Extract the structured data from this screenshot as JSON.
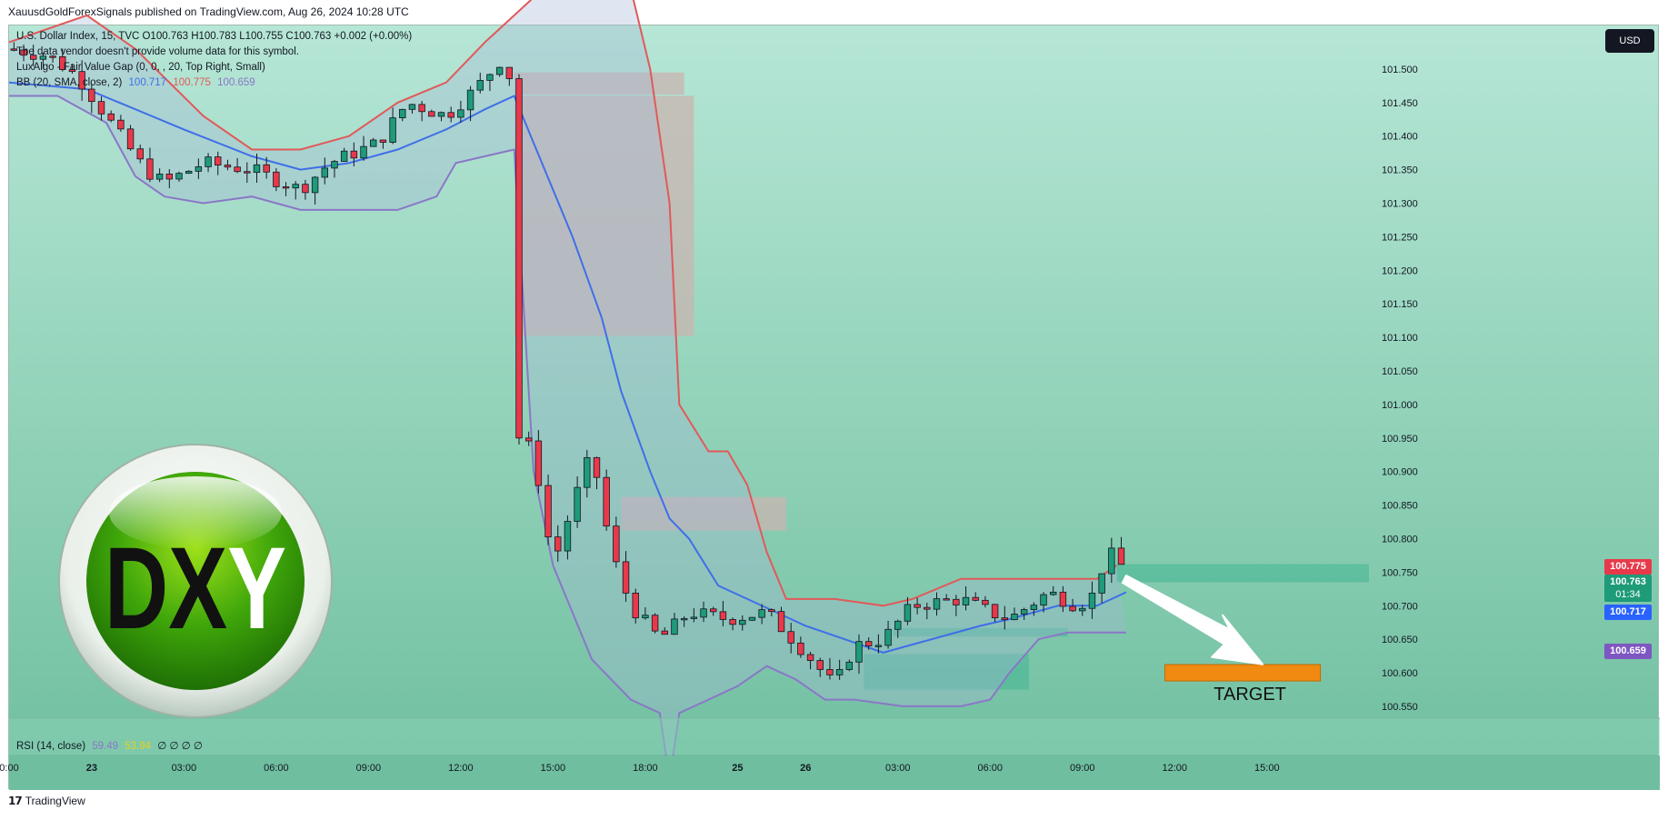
{
  "header": {
    "text": "XauusdGoldForexSignals published on TradingView.com, Aug 26, 2024 10:28 UTC"
  },
  "legend": {
    "symbol_line": "U.S. Dollar Index, 15, TVC  O100.763  H100.783  L100.755  C100.763  +0.002 (+0.00%)",
    "vol_line": "The data vendor doesn't provide volume data for this symbol.",
    "fvg_line": "LuxAlgo - Fair Value Gap (0, 0, , 20, Top Right, Small)",
    "bb_name": "BB (20, SMA, close, 2)",
    "bb_basis": "100.717",
    "bb_upper": "100.775",
    "bb_lower": "100.659"
  },
  "currency_button": "USD",
  "price_tags": {
    "upper": "100.775",
    "close": "100.763",
    "countdown": "01:34",
    "basis": "100.717",
    "lower": "100.659"
  },
  "rsi": {
    "label": "RSI (14, close)",
    "v1": "59.49",
    "v2": "53.94",
    "rest": "∅ ∅ ∅ ∅"
  },
  "logo": {
    "text": "DXY"
  },
  "annotation": {
    "target_label": "TARGET"
  },
  "footer": {
    "brand": "TradingView",
    "logo_icon": "tradingview-logo-icon"
  },
  "colors": {
    "bb_upper": "#e05a5a",
    "bb_basis": "#3f6fe8",
    "bb_lower": "#8a77c7",
    "bull": "#1e9b78",
    "bear": "#e8394a",
    "target": "#f08a10",
    "fvg_bear": "#c9b4b0",
    "fvg_bull": "#4cb896"
  },
  "chart_data": {
    "type": "candlestick",
    "symbol": "U.S. Dollar Index, 15, TVC",
    "y_axis": {
      "range": [
        100.535,
        101.565
      ],
      "ticks": [
        "101.500",
        "101.450",
        "101.400",
        "101.350",
        "101.300",
        "101.250",
        "101.200",
        "101.150",
        "101.100",
        "101.050",
        "101.000",
        "100.950",
        "100.900",
        "100.850",
        "100.800",
        "100.750",
        "100.700",
        "100.650",
        "100.600",
        "100.550"
      ]
    },
    "x_axis": {
      "bar_range": [
        0,
        140
      ],
      "ticks": [
        {
          "label": "0:00",
          "bar": 0
        },
        {
          "label": "23",
          "bar": 8.5
        },
        {
          "label": "03:00",
          "bar": 18
        },
        {
          "label": "06:00",
          "bar": 27.5
        },
        {
          "label": "09:00",
          "bar": 37
        },
        {
          "label": "12:00",
          "bar": 46.5
        },
        {
          "label": "15:00",
          "bar": 56
        },
        {
          "label": "18:00",
          "bar": 65.5
        },
        {
          "label": "25",
          "bar": 75
        },
        {
          "label": "26",
          "bar": 82
        },
        {
          "label": "03:00",
          "bar": 91.5
        },
        {
          "label": "06:00",
          "bar": 101
        },
        {
          "label": "09:00",
          "bar": 110.5
        },
        {
          "label": "12:00",
          "bar": 120
        },
        {
          "label": "15:00",
          "bar": 129.5
        }
      ]
    },
    "last_price": 100.763,
    "price_anchors": [
      [
        0,
        101.53
      ],
      [
        4,
        101.52
      ],
      [
        7,
        101.49
      ],
      [
        10,
        101.43
      ],
      [
        14,
        101.35
      ],
      [
        16,
        101.33
      ],
      [
        20,
        101.36
      ],
      [
        25,
        101.35
      ],
      [
        30,
        101.32
      ],
      [
        33,
        101.36
      ],
      [
        38,
        101.39
      ],
      [
        41,
        101.45
      ],
      [
        45,
        101.43
      ],
      [
        48,
        101.47
      ],
      [
        51,
        101.52
      ],
      [
        52,
        101.46
      ],
      [
        52.5,
        100.95
      ],
      [
        54,
        100.93
      ],
      [
        56,
        100.76
      ],
      [
        58,
        100.85
      ],
      [
        60,
        100.93
      ],
      [
        62,
        100.78
      ],
      [
        64,
        100.7
      ],
      [
        67,
        100.65
      ],
      [
        70,
        100.69
      ],
      [
        74,
        100.68
      ],
      [
        78,
        100.69
      ],
      [
        80,
        100.66
      ],
      [
        82,
        100.63
      ],
      [
        85,
        100.58
      ],
      [
        87,
        100.64
      ],
      [
        90,
        100.65
      ],
      [
        93,
        100.7
      ],
      [
        98,
        100.71
      ],
      [
        101,
        100.69
      ],
      [
        103,
        100.68
      ],
      [
        107,
        100.72
      ],
      [
        110,
        100.7
      ],
      [
        112,
        100.72
      ],
      [
        113,
        100.79
      ],
      [
        114,
        100.76
      ]
    ],
    "bollinger_bands": {
      "name": "BB (20, SMA, close, 2)",
      "upper": [
        [
          0,
          101.54
        ],
        [
          8,
          101.58
        ],
        [
          13,
          101.53
        ],
        [
          20,
          101.43
        ],
        [
          25,
          101.38
        ],
        [
          30,
          101.38
        ],
        [
          35,
          101.4
        ],
        [
          40,
          101.45
        ],
        [
          45,
          101.48
        ],
        [
          49,
          101.54
        ],
        [
          52,
          101.58
        ],
        [
          55,
          101.62
        ],
        [
          60,
          101.62
        ],
        [
          64,
          101.62
        ],
        [
          66,
          101.5
        ],
        [
          68,
          101.3
        ],
        [
          69,
          101.0
        ],
        [
          72,
          100.93
        ],
        [
          74,
          100.93
        ],
        [
          76,
          100.88
        ],
        [
          78,
          100.78
        ],
        [
          80,
          100.71
        ],
        [
          85,
          100.71
        ],
        [
          90,
          100.7
        ],
        [
          93,
          100.71
        ],
        [
          98,
          100.74
        ],
        [
          101,
          100.74
        ],
        [
          104,
          100.74
        ],
        [
          108,
          100.74
        ],
        [
          112,
          100.74
        ],
        [
          114,
          100.76
        ]
      ],
      "basis": [
        [
          0,
          101.48
        ],
        [
          8,
          101.47
        ],
        [
          13,
          101.44
        ],
        [
          18,
          101.41
        ],
        [
          25,
          101.37
        ],
        [
          30,
          101.35
        ],
        [
          35,
          101.36
        ],
        [
          40,
          101.38
        ],
        [
          45,
          101.41
        ],
        [
          49,
          101.44
        ],
        [
          52,
          101.46
        ],
        [
          54,
          101.39
        ],
        [
          58,
          101.25
        ],
        [
          61,
          101.13
        ],
        [
          63,
          101.02
        ],
        [
          66,
          100.9
        ],
        [
          68,
          100.83
        ],
        [
          70,
          100.8
        ],
        [
          73,
          100.73
        ],
        [
          76,
          100.71
        ],
        [
          79,
          100.69
        ],
        [
          82,
          100.67
        ],
        [
          86,
          100.65
        ],
        [
          90,
          100.63
        ],
        [
          95,
          100.65
        ],
        [
          100,
          100.67
        ],
        [
          103,
          100.68
        ],
        [
          108,
          100.7
        ],
        [
          112,
          100.7
        ],
        [
          115,
          100.72
        ]
      ],
      "lower": [
        [
          0,
          101.46
        ],
        [
          5,
          101.46
        ],
        [
          10,
          101.42
        ],
        [
          13,
          101.34
        ],
        [
          16,
          101.31
        ],
        [
          20,
          101.3
        ],
        [
          25,
          101.31
        ],
        [
          30,
          101.29
        ],
        [
          35,
          101.29
        ],
        [
          40,
          101.29
        ],
        [
          44,
          101.31
        ],
        [
          46,
          101.36
        ],
        [
          49,
          101.37
        ],
        [
          52,
          101.38
        ],
        [
          53,
          101.14
        ],
        [
          54,
          100.9
        ],
        [
          56,
          100.76
        ],
        [
          60,
          100.62
        ],
        [
          64,
          100.56
        ],
        [
          67,
          100.54
        ],
        [
          68,
          100.44
        ],
        [
          69,
          100.54
        ],
        [
          72,
          100.56
        ],
        [
          75,
          100.58
        ],
        [
          78,
          100.61
        ],
        [
          81,
          100.59
        ],
        [
          84,
          100.56
        ],
        [
          87,
          100.56
        ],
        [
          92,
          100.55
        ],
        [
          98,
          100.55
        ],
        [
          101,
          100.56
        ],
        [
          103,
          100.6
        ],
        [
          106,
          100.65
        ],
        [
          109,
          100.66
        ],
        [
          112,
          100.66
        ],
        [
          115,
          100.66
        ]
      ]
    },
    "fair_value_gaps": [
      {
        "type": "bearish",
        "bar_range": [
          52,
          69.5
        ],
        "price_range": [
          101.462,
          101.495
        ]
      },
      {
        "type": "bearish",
        "bar_range": [
          52,
          70.5
        ],
        "price_range": [
          101.102,
          101.46
        ]
      },
      {
        "type": "bearish",
        "bar_range": [
          63,
          80
        ],
        "price_range": [
          100.812,
          100.862
        ]
      },
      {
        "type": "bullish",
        "bar_range": [
          114,
          140
        ],
        "price_range": [
          100.735,
          100.762
        ]
      },
      {
        "type": "bullish",
        "bar_range": [
          91,
          109
        ],
        "price_range": [
          100.654,
          100.667
        ]
      },
      {
        "type": "bullish",
        "bar_range": [
          88,
          105
        ],
        "price_range": [
          100.575,
          100.628
        ]
      }
    ],
    "target": {
      "label": "TARGET",
      "price": 100.6,
      "bar_range": [
        119,
        135
      ]
    },
    "rsi": {
      "name": "RSI (14, close)",
      "values": [
        "59.49",
        "53.94"
      ]
    }
  }
}
